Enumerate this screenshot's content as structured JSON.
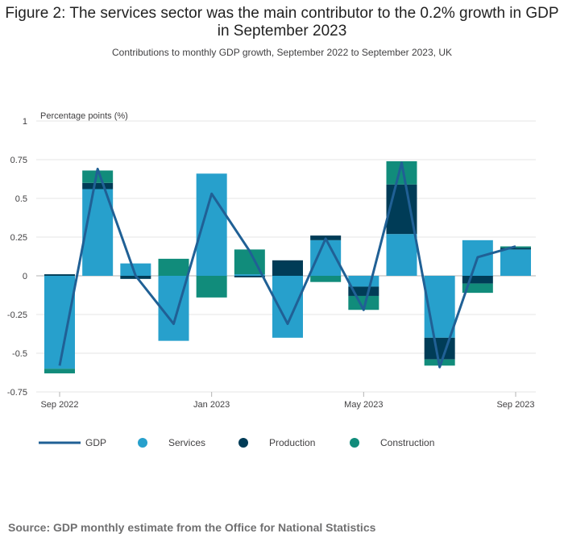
{
  "chart_data": {
    "type": "bar",
    "title": "Figure 2: The services sector was the main contributor to the 0.2% growth in GDP in September 2023",
    "subtitle": "Contributions to monthly GDP growth, September 2022 to September 2023, UK",
    "ylabel": "Percentage points (%)",
    "xlabel": "",
    "ylim": [
      -0.75,
      1
    ],
    "yticks": [
      1,
      0.75,
      0.5,
      0.25,
      0,
      -0.25,
      -0.5,
      -0.75
    ],
    "ytick_labels": [
      "1",
      "0.75",
      "0.5",
      "0.25",
      "0",
      "-0.25",
      "-0.5",
      "-0.75"
    ],
    "categories": [
      "Sep 2022",
      "Oct 2022",
      "Nov 2022",
      "Dec 2022",
      "Jan 2023",
      "Feb 2023",
      "Mar 2023",
      "Apr 2023",
      "May 2023",
      "Jun 2023",
      "Jul 2023",
      "Aug 2023",
      "Sep 2023"
    ],
    "xtick_labels": [
      {
        "index": 0,
        "label": "Sep 2022"
      },
      {
        "index": 4,
        "label": "Jan 2023"
      },
      {
        "index": 8,
        "label": "May 2023"
      },
      {
        "index": 12,
        "label": "Sep 2023"
      }
    ],
    "series": [
      {
        "name": "Services",
        "type": "bar",
        "color": "#27a0cc",
        "values": [
          -0.6,
          0.56,
          0.08,
          -0.42,
          0.66,
          0.01,
          -0.4,
          0.23,
          -0.07,
          0.27,
          -0.4,
          0.23,
          0.17
        ]
      },
      {
        "name": "Production",
        "type": "bar",
        "color": "#003c57",
        "values": [
          0.01,
          0.04,
          -0.02,
          0.0,
          0.0,
          -0.01,
          0.1,
          0.03,
          -0.06,
          0.32,
          -0.14,
          -0.05,
          0.01
        ]
      },
      {
        "name": "Construction",
        "type": "bar",
        "color": "#118c7b",
        "values": [
          -0.03,
          0.08,
          0.0,
          0.11,
          -0.14,
          0.16,
          0.0,
          -0.04,
          -0.09,
          0.15,
          -0.04,
          -0.06,
          0.01
        ]
      },
      {
        "name": "GDP",
        "type": "line",
        "color": "#206095",
        "values": [
          -0.58,
          0.69,
          0.0,
          -0.31,
          0.53,
          0.16,
          -0.31,
          0.24,
          -0.22,
          0.73,
          -0.59,
          0.12,
          0.19
        ]
      }
    ],
    "legend": {
      "position": "bottom-left",
      "items": [
        "GDP",
        "Services",
        "Production",
        "Construction"
      ]
    },
    "grid": true
  },
  "source": "Source: GDP monthly estimate from the Office for National Statistics"
}
